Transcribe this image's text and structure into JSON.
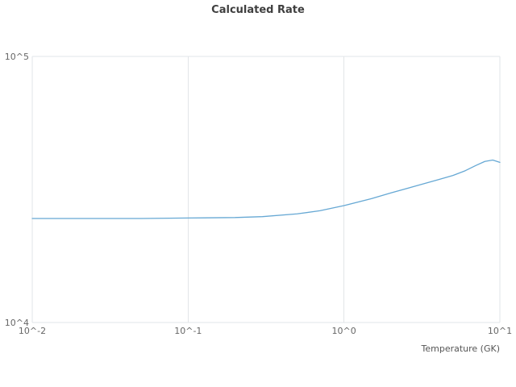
{
  "chart_data": {
    "type": "line",
    "title": "Calculated Rate",
    "xlabel": "Temperature (GK)",
    "ylabel": "",
    "x_scale": "log",
    "y_scale": "log",
    "xlim": [
      0.01,
      10
    ],
    "ylim": [
      10000,
      100000
    ],
    "grid": true,
    "legend": "none",
    "x_ticks": [
      {
        "value": 0.01,
        "label": "10^-2"
      },
      {
        "value": 0.1,
        "label": "10^-1"
      },
      {
        "value": 1,
        "label": "10^0"
      },
      {
        "value": 10,
        "label": "10^1"
      }
    ],
    "y_ticks": [
      {
        "value": 10000,
        "label": "10^4"
      },
      {
        "value": 100000,
        "label": "10^5"
      }
    ],
    "series": [
      {
        "name": "Calculated Rate",
        "color": "#66a8d4",
        "x": [
          0.01,
          0.02,
          0.05,
          0.1,
          0.2,
          0.3,
          0.5,
          0.7,
          1,
          1.5,
          2,
          3,
          4,
          5,
          6,
          7,
          8,
          9,
          10
        ],
        "y": [
          24600,
          24600,
          24600,
          24700,
          24800,
          25000,
          25600,
          26300,
          27500,
          29200,
          30700,
          32800,
          34400,
          35700,
          37200,
          38900,
          40300,
          40800,
          40000
        ]
      }
    ]
  }
}
